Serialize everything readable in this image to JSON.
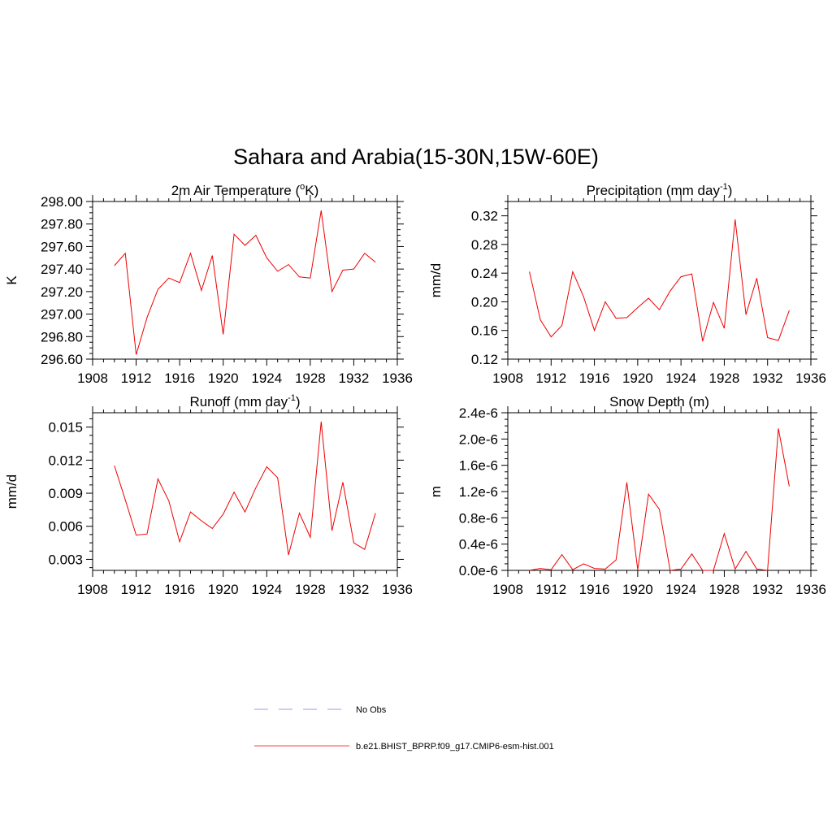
{
  "figure": {
    "title": "Sahara and Arabia(15-30N,15W-60E)"
  },
  "chart_data": [
    {
      "type": "line",
      "title": "2m Air Temperature (",
      "title_sup": "o",
      "title_tail": "K)",
      "xlabel": "",
      "ylabel": "K",
      "xlim": [
        1908,
        1936
      ],
      "ylim": [
        296.6,
        298.0
      ],
      "x_ticks": [
        "1908",
        "1912",
        "1916",
        "1920",
        "1924",
        "1928",
        "1932",
        "1936"
      ],
      "y_ticks": [
        "296.60",
        "296.80",
        "297.00",
        "297.20",
        "297.40",
        "297.60",
        "297.80",
        "298.00"
      ],
      "x": [
        1910,
        1911,
        1912,
        1913,
        1914,
        1915,
        1916,
        1917,
        1918,
        1919,
        1920,
        1921,
        1922,
        1923,
        1924,
        1925,
        1926,
        1927,
        1928,
        1929,
        1930,
        1931,
        1932,
        1933,
        1934
      ],
      "series": [
        {
          "values": [
            297.43,
            297.54,
            296.64,
            296.97,
            297.22,
            297.32,
            297.28,
            297.54,
            297.21,
            297.52,
            296.82,
            297.71,
            297.61,
            297.7,
            297.5,
            297.38,
            297.44,
            297.33,
            297.32,
            297.92,
            297.2,
            297.39,
            297.4,
            297.54,
            297.46
          ]
        }
      ]
    },
    {
      "type": "line",
      "title": "Precipitation (mm day",
      "title_sup": "-1",
      "title_tail": ")",
      "xlabel": "",
      "ylabel": "mm/d",
      "xlim": [
        1908,
        1936
      ],
      "ylim": [
        0.12,
        0.34
      ],
      "x_ticks": [
        "1908",
        "1912",
        "1916",
        "1920",
        "1924",
        "1928",
        "1932",
        "1936"
      ],
      "y_ticks": [
        "0.12",
        "0.16",
        "0.20",
        "0.24",
        "0.28",
        "0.32"
      ],
      "x": [
        1910,
        1911,
        1912,
        1913,
        1914,
        1915,
        1916,
        1917,
        1918,
        1919,
        1920,
        1921,
        1922,
        1923,
        1924,
        1925,
        1926,
        1927,
        1928,
        1929,
        1930,
        1931,
        1932,
        1933,
        1934
      ],
      "series": [
        {
          "values": [
            0.242,
            0.175,
            0.151,
            0.167,
            0.242,
            0.207,
            0.16,
            0.2,
            0.177,
            0.178,
            0.192,
            0.205,
            0.189,
            0.215,
            0.235,
            0.239,
            0.145,
            0.199,
            0.163,
            0.315,
            0.182,
            0.233,
            0.15,
            0.146,
            0.188
          ]
        }
      ]
    },
    {
      "type": "line",
      "title": "Runoff (mm day",
      "title_sup": "-1",
      "title_tail": ")",
      "xlabel": "",
      "ylabel": "mm/d",
      "xlim": [
        1908,
        1936
      ],
      "ylim": [
        0.002,
        0.0163
      ],
      "x_ticks": [
        "1908",
        "1912",
        "1916",
        "1920",
        "1924",
        "1928",
        "1932",
        "1936"
      ],
      "y_ticks": [
        "0.003",
        "0.006",
        "0.009",
        "0.012",
        "0.015"
      ],
      "x": [
        1910,
        1911,
        1912,
        1913,
        1914,
        1915,
        1916,
        1917,
        1918,
        1919,
        1920,
        1921,
        1922,
        1923,
        1924,
        1925,
        1926,
        1927,
        1928,
        1929,
        1930,
        1931,
        1932,
        1933,
        1934
      ],
      "series": [
        {
          "values": [
            0.0115,
            0.0084,
            0.0052,
            0.0053,
            0.0103,
            0.0083,
            0.0046,
            0.0073,
            0.0065,
            0.0058,
            0.0071,
            0.0091,
            0.0073,
            0.0095,
            0.0114,
            0.0104,
            0.0034,
            0.0072,
            0.005,
            0.0155,
            0.0056,
            0.01,
            0.0045,
            0.0039,
            0.0072
          ]
        }
      ]
    },
    {
      "type": "line",
      "title": "Snow Depth (m)",
      "title_sup": "",
      "title_tail": "",
      "xlabel": "",
      "ylabel": "m",
      "xlim": [
        1908,
        1936
      ],
      "ylim": [
        0.0,
        2.4e-06
      ],
      "x_ticks": [
        "1908",
        "1912",
        "1916",
        "1920",
        "1924",
        "1928",
        "1932",
        "1936"
      ],
      "y_ticks": [
        "0.0e-6",
        "0.4e-6",
        "0.8e-6",
        "1.2e-6",
        "1.6e-6",
        "2.0e-6",
        "2.4e-6"
      ],
      "x": [
        1910,
        1911,
        1912,
        1913,
        1914,
        1915,
        1916,
        1917,
        1918,
        1919,
        1920,
        1921,
        1922,
        1923,
        1924,
        1925,
        1926,
        1927,
        1928,
        1929,
        1930,
        1931,
        1932,
        1933,
        1934
      ],
      "series": [
        {
          "values": [
            0.0,
            3e-08,
            1e-08,
            2.4e-07,
            1e-08,
            1e-07,
            3e-08,
            2e-08,
            1.6e-07,
            1.34e-06,
            1e-08,
            1.16e-06,
            9.3e-07,
            0.0,
            2e-08,
            2.5e-07,
            0.0,
            0.0,
            5.6e-07,
            2e-08,
            2.9e-07,
            2e-08,
            0.0,
            2.16e-06,
            1.28e-06
          ]
        }
      ]
    }
  ],
  "legend": {
    "entries": [
      {
        "label": "No Obs",
        "color": "#9999ee",
        "style": "dashed"
      },
      {
        "label": "b.e21.BHIST_BPRP.f09_g17.CMIP6-esm-hist.001",
        "color": "#ff4444",
        "style": "solid"
      }
    ]
  },
  "colors": {
    "series": "#ee0000",
    "axis": "#000000"
  }
}
